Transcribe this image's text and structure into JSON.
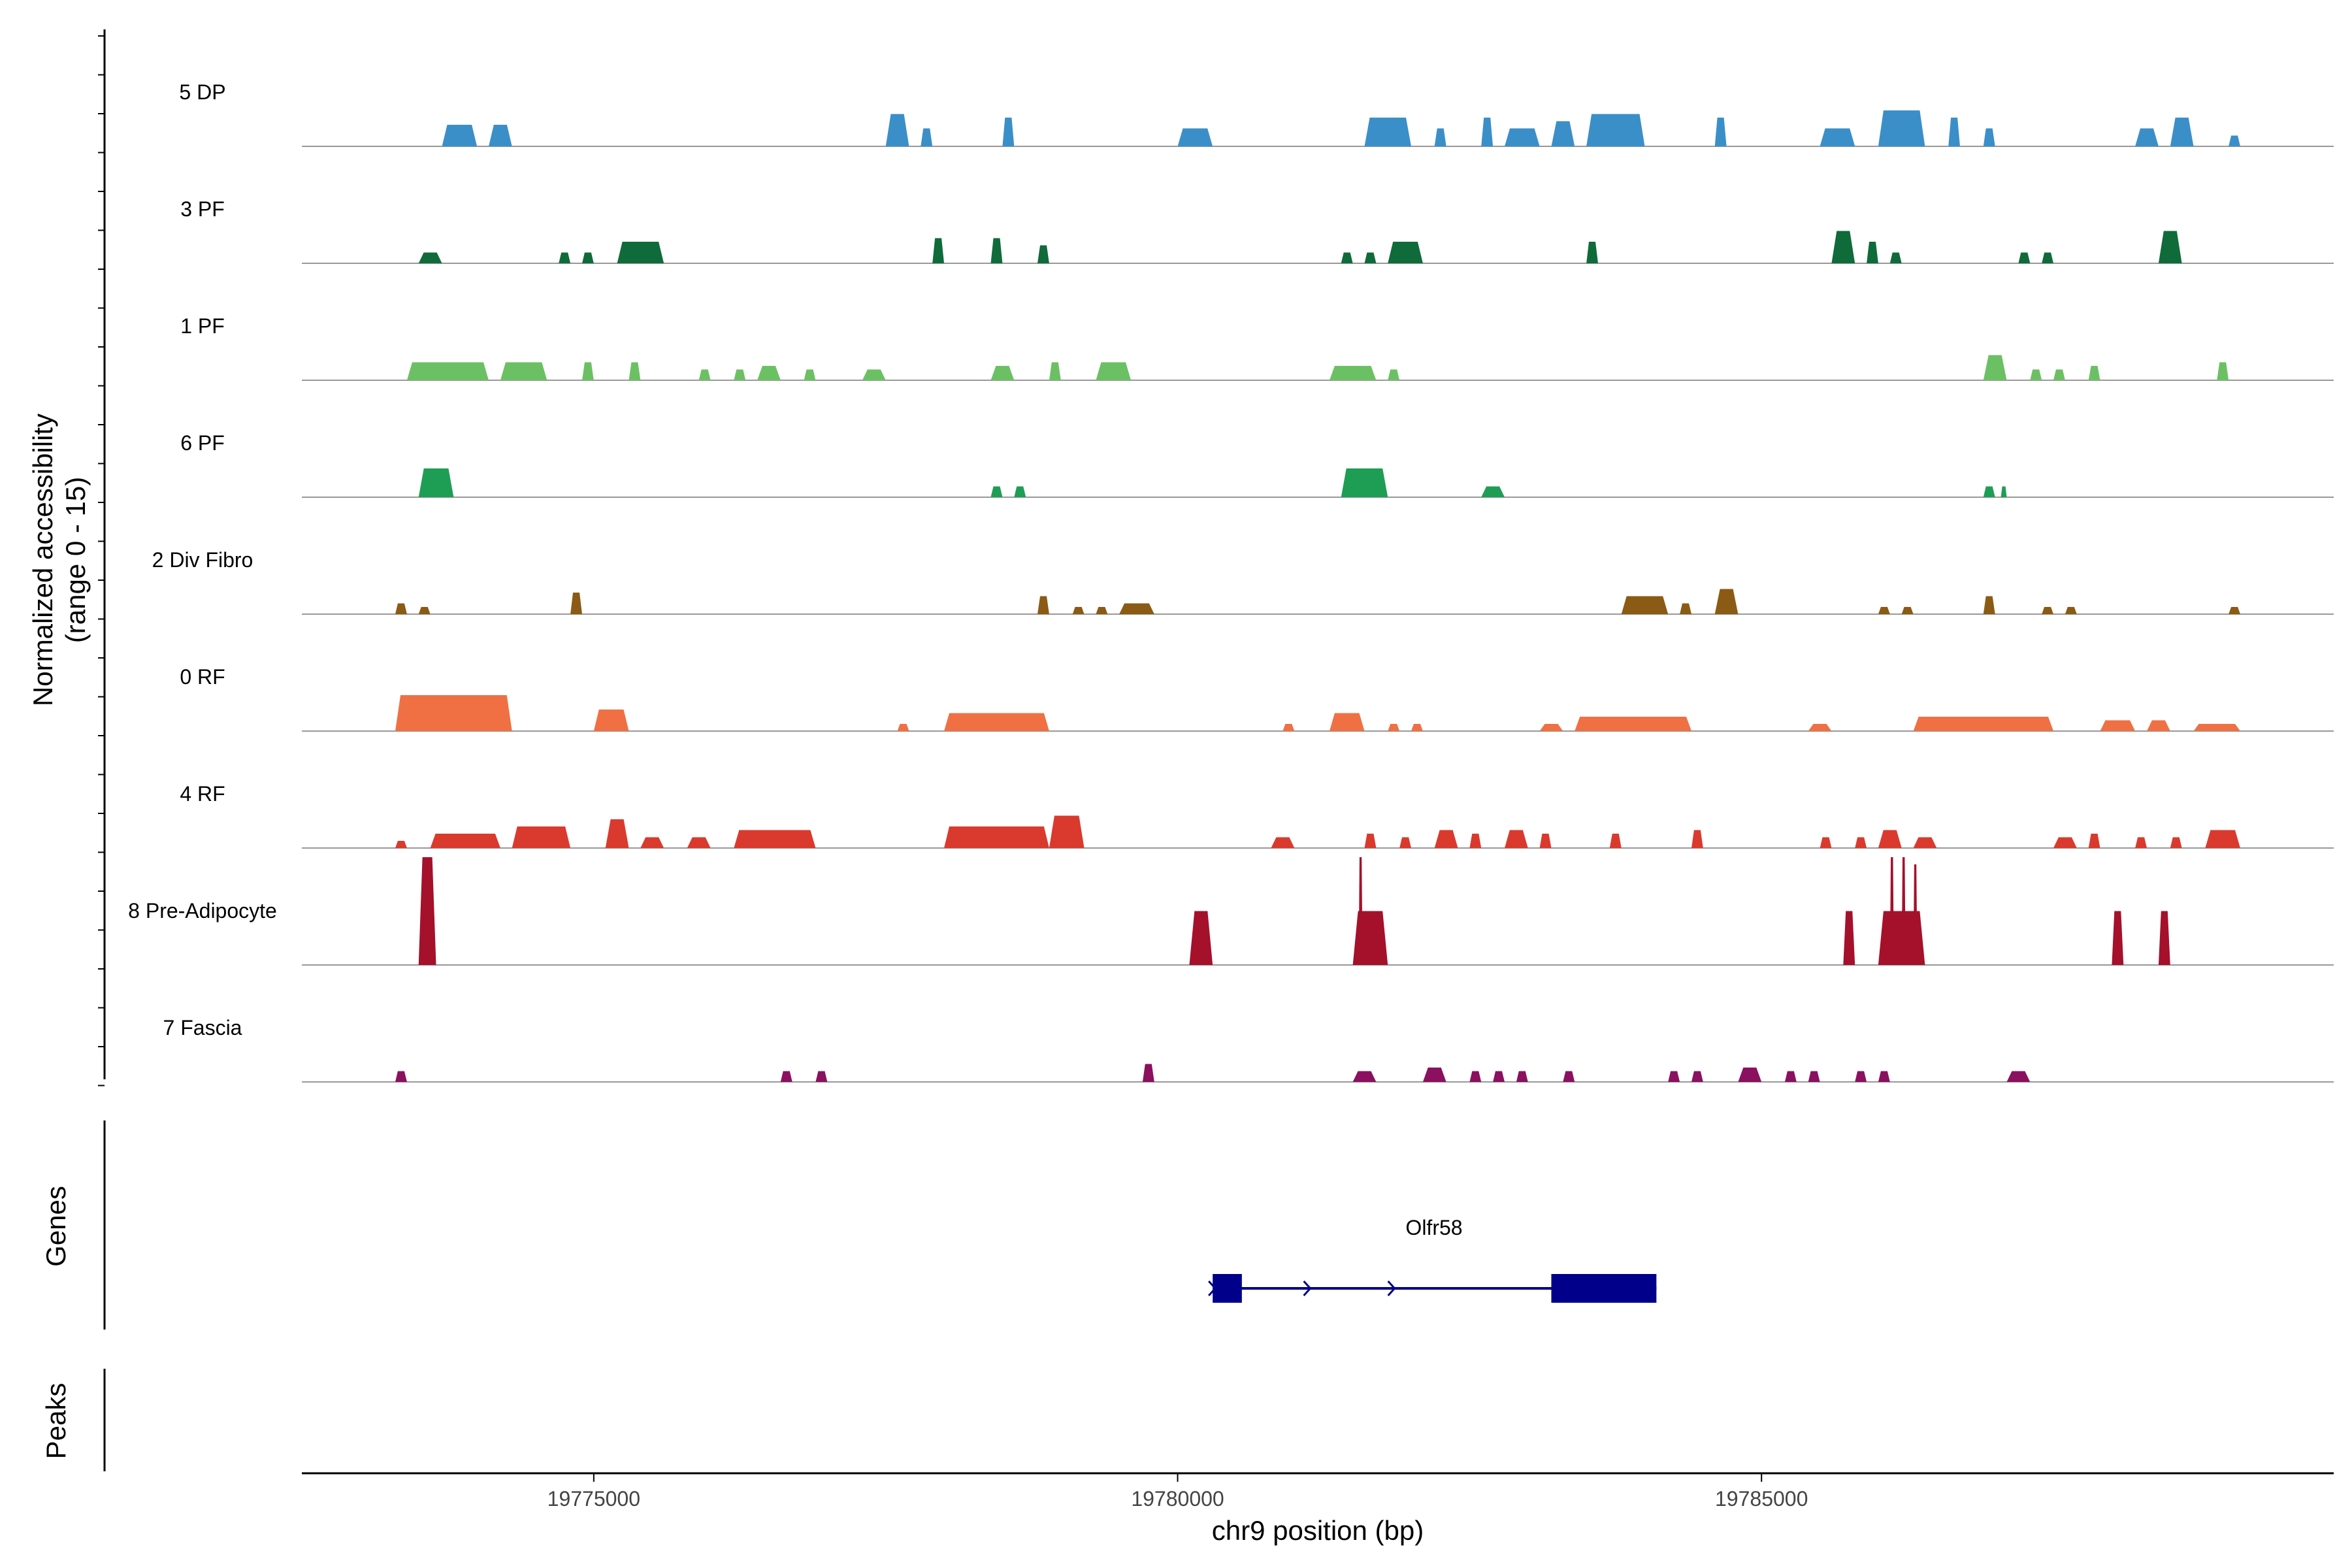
{
  "chart_data": {
    "type": "area",
    "chromosome": "chr9",
    "xlim": [
      19772500,
      19789900
    ],
    "xlabel": "chr9 position (bp)",
    "x_ticks": [
      19775000,
      19780000,
      19785000
    ],
    "x_tick_labels": [
      "19775000",
      "19780000",
      "19785000"
    ],
    "coverage_panel": {
      "ylabel_line1": "Normalized accessibility",
      "ylabel_line2": "(range 0 - 15)",
      "ylim": [
        0,
        15
      ]
    },
    "tracks": [
      {
        "name": "5 DP",
        "color": "#3B8FC9",
        "peaks": [
          {
            "start": 19773700,
            "end": 19774000,
            "height": 3
          },
          {
            "start": 19774100,
            "end": 19774300,
            "height": 3
          },
          {
            "start": 19777500,
            "end": 19777700,
            "height": 4.5
          },
          {
            "start": 19777800,
            "end": 19777900,
            "height": 2.5
          },
          {
            "start": 19778500,
            "end": 19778600,
            "height": 4
          },
          {
            "start": 19780000,
            "end": 19780300,
            "height": 2.5
          },
          {
            "start": 19781600,
            "end": 19782000,
            "height": 4
          },
          {
            "start": 19782200,
            "end": 19782300,
            "height": 2.5
          },
          {
            "start": 19782600,
            "end": 19782700,
            "height": 4
          },
          {
            "start": 19782800,
            "end": 19783100,
            "height": 2.5
          },
          {
            "start": 19783200,
            "end": 19783400,
            "height": 3.5
          },
          {
            "start": 19783500,
            "end": 19784000,
            "height": 4.5
          },
          {
            "start": 19784600,
            "end": 19784700,
            "height": 4
          },
          {
            "start": 19785500,
            "end": 19785800,
            "height": 2.5
          },
          {
            "start": 19786000,
            "end": 19786400,
            "height": 5
          },
          {
            "start": 19786600,
            "end": 19786700,
            "height": 4
          },
          {
            "start": 19786900,
            "end": 19787000,
            "height": 2.5
          },
          {
            "start": 19788200,
            "end": 19788400,
            "height": 2.5
          },
          {
            "start": 19788500,
            "end": 19788700,
            "height": 4
          },
          {
            "start": 19789000,
            "end": 19789100,
            "height": 1.5
          }
        ]
      },
      {
        "name": "3 PF",
        "color": "#0F6B3A",
        "peaks": [
          {
            "start": 19773500,
            "end": 19773700,
            "height": 1.5
          },
          {
            "start": 19774700,
            "end": 19774800,
            "height": 1.5
          },
          {
            "start": 19774900,
            "end": 19775000,
            "height": 1.5
          },
          {
            "start": 19775200,
            "end": 19775600,
            "height": 3
          },
          {
            "start": 19777900,
            "end": 19778000,
            "height": 3.5
          },
          {
            "start": 19778400,
            "end": 19778500,
            "height": 3.5
          },
          {
            "start": 19778800,
            "end": 19778900,
            "height": 2.5
          },
          {
            "start": 19781400,
            "end": 19781500,
            "height": 1.5
          },
          {
            "start": 19781600,
            "end": 19781700,
            "height": 1.5
          },
          {
            "start": 19781800,
            "end": 19782100,
            "height": 3
          },
          {
            "start": 19783500,
            "end": 19783600,
            "height": 3
          },
          {
            "start": 19785600,
            "end": 19785800,
            "height": 4.5
          },
          {
            "start": 19785900,
            "end": 19786000,
            "height": 3
          },
          {
            "start": 19786100,
            "end": 19786200,
            "height": 1.5
          },
          {
            "start": 19787200,
            "end": 19787300,
            "height": 1.5
          },
          {
            "start": 19787400,
            "end": 19787500,
            "height": 1.5
          },
          {
            "start": 19788400,
            "end": 19788600,
            "height": 4.5
          }
        ]
      },
      {
        "name": "1 PF",
        "color": "#6CC064",
        "peaks": [
          {
            "start": 19773400,
            "end": 19774100,
            "height": 2.5
          },
          {
            "start": 19774200,
            "end": 19774600,
            "height": 2.5
          },
          {
            "start": 19774900,
            "end": 19775000,
            "height": 2.5
          },
          {
            "start": 19775300,
            "end": 19775400,
            "height": 2.5
          },
          {
            "start": 19775900,
            "end": 19776000,
            "height": 1.5
          },
          {
            "start": 19776200,
            "end": 19776300,
            "height": 1.5
          },
          {
            "start": 19776400,
            "end": 19776600,
            "height": 2
          },
          {
            "start": 19776800,
            "end": 19776900,
            "height": 1.5
          },
          {
            "start": 19777300,
            "end": 19777500,
            "height": 1.5
          },
          {
            "start": 19778400,
            "end": 19778600,
            "height": 2
          },
          {
            "start": 19778900,
            "end": 19779000,
            "height": 2.5
          },
          {
            "start": 19779300,
            "end": 19779600,
            "height": 2.5
          },
          {
            "start": 19781300,
            "end": 19781700,
            "height": 2
          },
          {
            "start": 19781800,
            "end": 19781900,
            "height": 1.5
          },
          {
            "start": 19786900,
            "end": 19787100,
            "height": 3.5
          },
          {
            "start": 19787300,
            "end": 19787400,
            "height": 1.5
          },
          {
            "start": 19787500,
            "end": 19787600,
            "height": 1.5
          },
          {
            "start": 19787800,
            "end": 19787900,
            "height": 2
          },
          {
            "start": 19788900,
            "end": 19789000,
            "height": 2.5
          }
        ]
      },
      {
        "name": "6 PF",
        "color": "#1E9E55",
        "peaks": [
          {
            "start": 19773500,
            "end": 19773800,
            "height": 4
          },
          {
            "start": 19778400,
            "end": 19778500,
            "height": 1.5
          },
          {
            "start": 19778600,
            "end": 19778700,
            "height": 1.5
          },
          {
            "start": 19781400,
            "end": 19781800,
            "height": 4
          },
          {
            "start": 19782600,
            "end": 19782800,
            "height": 1.5
          },
          {
            "start": 19786900,
            "end": 19787000,
            "height": 1.5
          },
          {
            "start": 19787050,
            "end": 19787100,
            "height": 1.5
          }
        ]
      },
      {
        "name": "2 Div Fibro",
        "color": "#8B5A14",
        "peaks": [
          {
            "start": 19773300,
            "end": 19773400,
            "height": 1.5
          },
          {
            "start": 19773500,
            "end": 19773600,
            "height": 1
          },
          {
            "start": 19774800,
            "end": 19774900,
            "height": 3
          },
          {
            "start": 19778800,
            "end": 19778900,
            "height": 2.5
          },
          {
            "start": 19779100,
            "end": 19779200,
            "height": 1
          },
          {
            "start": 19779300,
            "end": 19779400,
            "height": 1
          },
          {
            "start": 19779500,
            "end": 19779800,
            "height": 1.5
          },
          {
            "start": 19783800,
            "end": 19784200,
            "height": 2.5
          },
          {
            "start": 19784300,
            "end": 19784400,
            "height": 1.5
          },
          {
            "start": 19784600,
            "end": 19784800,
            "height": 3.5
          },
          {
            "start": 19786000,
            "end": 19786100,
            "height": 1
          },
          {
            "start": 19786200,
            "end": 19786300,
            "height": 1
          },
          {
            "start": 19786900,
            "end": 19787000,
            "height": 2.5
          },
          {
            "start": 19787400,
            "end": 19787500,
            "height": 1
          },
          {
            "start": 19787600,
            "end": 19787700,
            "height": 1
          },
          {
            "start": 19789000,
            "end": 19789100,
            "height": 1
          }
        ]
      },
      {
        "name": "0 RF",
        "color": "#F07043",
        "peaks": [
          {
            "start": 19773300,
            "end": 19774300,
            "height": 5
          },
          {
            "start": 19775000,
            "end": 19775300,
            "height": 3
          },
          {
            "start": 19777600,
            "end": 19777700,
            "height": 1
          },
          {
            "start": 19778000,
            "end": 19778900,
            "height": 2.5
          },
          {
            "start": 19780900,
            "end": 19781000,
            "height": 1
          },
          {
            "start": 19781300,
            "end": 19781600,
            "height": 2.5
          },
          {
            "start": 19781800,
            "end": 19781900,
            "height": 1
          },
          {
            "start": 19782000,
            "end": 19782100,
            "height": 1
          },
          {
            "start": 19783100,
            "end": 19783300,
            "height": 1
          },
          {
            "start": 19783400,
            "end": 19784400,
            "height": 2
          },
          {
            "start": 19785400,
            "end": 19785600,
            "height": 1
          },
          {
            "start": 19786300,
            "end": 19787500,
            "height": 2
          },
          {
            "start": 19787900,
            "end": 19788200,
            "height": 1.5
          },
          {
            "start": 19788300,
            "end": 19788500,
            "height": 1.5
          },
          {
            "start": 19788700,
            "end": 19789100,
            "height": 1
          }
        ]
      },
      {
        "name": "4 RF",
        "color": "#DA3A2E",
        "peaks": [
          {
            "start": 19773300,
            "end": 19773400,
            "height": 1
          },
          {
            "start": 19773600,
            "end": 19774200,
            "height": 2
          },
          {
            "start": 19774300,
            "end": 19774800,
            "height": 3
          },
          {
            "start": 19775100,
            "end": 19775300,
            "height": 4
          },
          {
            "start": 19775400,
            "end": 19775600,
            "height": 1.5
          },
          {
            "start": 19775800,
            "end": 19776000,
            "height": 1.5
          },
          {
            "start": 19776200,
            "end": 19776900,
            "height": 2.5
          },
          {
            "start": 19778000,
            "end": 19778900,
            "height": 3
          },
          {
            "start": 19778900,
            "end": 19779200,
            "height": 4.5
          },
          {
            "start": 19780800,
            "end": 19781000,
            "height": 1.5
          },
          {
            "start": 19781600,
            "end": 19781700,
            "height": 2
          },
          {
            "start": 19781900,
            "end": 19782000,
            "height": 1.5
          },
          {
            "start": 19782200,
            "end": 19782400,
            "height": 2.5
          },
          {
            "start": 19782500,
            "end": 19782600,
            "height": 2
          },
          {
            "start": 19782800,
            "end": 19783000,
            "height": 2.5
          },
          {
            "start": 19783100,
            "end": 19783200,
            "height": 2
          },
          {
            "start": 19783700,
            "end": 19783800,
            "height": 2
          },
          {
            "start": 19784400,
            "end": 19784500,
            "height": 2.5
          },
          {
            "start": 19785500,
            "end": 19785600,
            "height": 1.5
          },
          {
            "start": 19785800,
            "end": 19785900,
            "height": 1.5
          },
          {
            "start": 19786000,
            "end": 19786200,
            "height": 2.5
          },
          {
            "start": 19786300,
            "end": 19786500,
            "height": 1.5
          },
          {
            "start": 19787500,
            "end": 19787700,
            "height": 1.5
          },
          {
            "start": 19787800,
            "end": 19787900,
            "height": 2
          },
          {
            "start": 19788200,
            "end": 19788300,
            "height": 1.5
          },
          {
            "start": 19788500,
            "end": 19788600,
            "height": 1.5
          },
          {
            "start": 19788800,
            "end": 19789100,
            "height": 2.5
          }
        ]
      },
      {
        "name": "8 Pre-Adipocyte",
        "color": "#A5102B",
        "peaks": [
          {
            "start": 19773500,
            "end": 19773650,
            "height": 15
          },
          {
            "start": 19780100,
            "end": 19780300,
            "height": 7.5
          },
          {
            "start": 19781500,
            "end": 19781800,
            "height": 7.5
          },
          {
            "start": 19781550,
            "end": 19781580,
            "height": 15
          },
          {
            "start": 19785700,
            "end": 19785800,
            "height": 7.5
          },
          {
            "start": 19786000,
            "end": 19786400,
            "height": 7.5
          },
          {
            "start": 19786100,
            "end": 19786130,
            "height": 15
          },
          {
            "start": 19786200,
            "end": 19786230,
            "height": 15
          },
          {
            "start": 19786300,
            "end": 19786330,
            "height": 14
          },
          {
            "start": 19788000,
            "end": 19788100,
            "height": 7.5
          },
          {
            "start": 19788400,
            "end": 19788500,
            "height": 7.5
          }
        ]
      },
      {
        "name": "7 Fascia",
        "color": "#8B1060",
        "peaks": [
          {
            "start": 19773300,
            "end": 19773400,
            "height": 1.5
          },
          {
            "start": 19776600,
            "end": 19776700,
            "height": 1.5
          },
          {
            "start": 19776900,
            "end": 19777000,
            "height": 1.5
          },
          {
            "start": 19779700,
            "end": 19779800,
            "height": 2.5
          },
          {
            "start": 19781500,
            "end": 19781700,
            "height": 1.5
          },
          {
            "start": 19782100,
            "end": 19782300,
            "height": 2
          },
          {
            "start": 19782500,
            "end": 19782600,
            "height": 1.5
          },
          {
            "start": 19782700,
            "end": 19782800,
            "height": 1.5
          },
          {
            "start": 19782900,
            "end": 19783000,
            "height": 1.5
          },
          {
            "start": 19783300,
            "end": 19783400,
            "height": 1.5
          },
          {
            "start": 19784200,
            "end": 19784300,
            "height": 1.5
          },
          {
            "start": 19784400,
            "end": 19784500,
            "height": 1.5
          },
          {
            "start": 19784800,
            "end": 19785000,
            "height": 2
          },
          {
            "start": 19785200,
            "end": 19785300,
            "height": 1.5
          },
          {
            "start": 19785400,
            "end": 19785500,
            "height": 1.5
          },
          {
            "start": 19785800,
            "end": 19785900,
            "height": 1.5
          },
          {
            "start": 19786000,
            "end": 19786100,
            "height": 1.5
          },
          {
            "start": 19787100,
            "end": 19787300,
            "height": 1.5
          }
        ]
      }
    ],
    "genes_panel": {
      "label": "Genes",
      "gene_name": "Olfr58",
      "color": "#00008B",
      "start": 19780300,
      "end": 19784100,
      "strand": "+",
      "exons": [
        [
          19780300,
          19780550
        ],
        [
          19783200,
          19784100
        ]
      ]
    },
    "peaks_panel": {
      "label": "Peaks"
    }
  }
}
